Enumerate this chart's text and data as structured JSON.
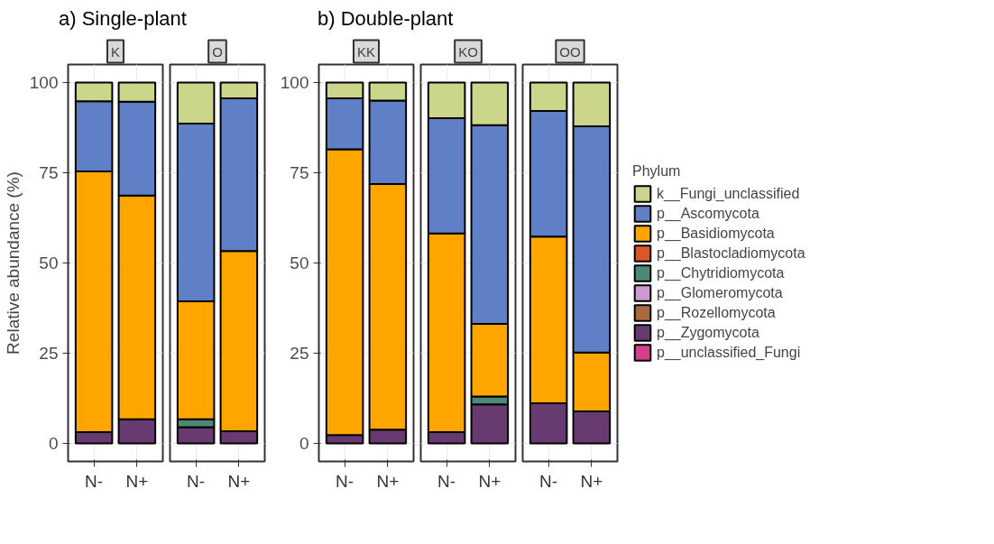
{
  "chart_data": [
    {
      "type": "bar",
      "title": "a) Single-plant",
      "subtitle": "K",
      "ylabel": "Relative abundance (%)",
      "categories": [
        "N-",
        "N+"
      ],
      "stacked": true,
      "ylim": [
        -5,
        105
      ],
      "yticks": [
        0,
        25,
        50,
        75,
        100
      ],
      "grid": true,
      "series": [
        {
          "color": "#d63f8a",
          "values": [
            0,
            0
          ]
        },
        {
          "color": "#683a72",
          "values": [
            3.1,
            6.7
          ]
        },
        {
          "color": "#a86b3c",
          "values": [
            0,
            0
          ]
        },
        {
          "color": "#cf98cf",
          "values": [
            0,
            0
          ]
        },
        {
          "color": "#4c8a77",
          "values": [
            0,
            0
          ]
        },
        {
          "color": "#dc5627",
          "values": [
            0,
            0
          ]
        },
        {
          "color": "#ffa500",
          "values": [
            72.3,
            62.0
          ]
        },
        {
          "color": "#5f80c7",
          "values": [
            19.4,
            26.0
          ]
        },
        {
          "color": "#ccd68a",
          "values": [
            5.2,
            5.3
          ]
        }
      ]
    },
    {
      "type": "bar",
      "subtitle": "O",
      "categories": [
        "N-",
        "N+"
      ],
      "stacked": true,
      "ylim": [
        -5,
        105
      ],
      "yticks": [
        0,
        25,
        50,
        75,
        100
      ],
      "grid": true,
      "tick_labels": "x",
      "series": [
        {
          "color": "#d63f8a",
          "values": [
            0,
            0
          ]
        },
        {
          "color": "#683a72",
          "values": [
            4.5,
            3.4
          ]
        },
        {
          "color": "#a86b3c",
          "values": [
            0,
            0
          ]
        },
        {
          "color": "#cf98cf",
          "values": [
            0,
            0
          ]
        },
        {
          "color": "#4c8a77",
          "values": [
            2.2,
            0
          ]
        },
        {
          "color": "#dc5627",
          "values": [
            0,
            0
          ]
        },
        {
          "color": "#ffa500",
          "values": [
            32.7,
            49.9
          ]
        },
        {
          "color": "#5f80c7",
          "values": [
            49.2,
            42.3
          ]
        },
        {
          "color": "#ccd68a",
          "values": [
            11.4,
            4.4
          ]
        }
      ]
    },
    {
      "type": "bar",
      "title": "b) Double-plant",
      "subtitle": "KK",
      "categories": [
        "N-",
        "N+"
      ],
      "stacked": true,
      "ylim": [
        -5,
        105
      ],
      "yticks": [
        0,
        25,
        50,
        75,
        100
      ],
      "grid": true,
      "series": [
        {
          "color": "#d63f8a",
          "values": [
            0,
            0
          ]
        },
        {
          "color": "#683a72",
          "values": [
            2.3,
            3.8
          ]
        },
        {
          "color": "#a86b3c",
          "values": [
            0,
            0
          ]
        },
        {
          "color": "#cf98cf",
          "values": [
            0,
            0
          ]
        },
        {
          "color": "#4c8a77",
          "values": [
            0,
            0
          ]
        },
        {
          "color": "#dc5627",
          "values": [
            0,
            0
          ]
        },
        {
          "color": "#ffa500",
          "values": [
            79.2,
            68.1
          ]
        },
        {
          "color": "#5f80c7",
          "values": [
            14.1,
            23.1
          ]
        },
        {
          "color": "#ccd68a",
          "values": [
            4.4,
            5.0
          ]
        }
      ]
    },
    {
      "type": "bar",
      "subtitle": "KO",
      "categories": [
        "N-",
        "N+"
      ],
      "stacked": true,
      "ylim": [
        -5,
        105
      ],
      "yticks": [
        0,
        25,
        50,
        75,
        100
      ],
      "grid": true,
      "tick_labels": "x",
      "series": [
        {
          "color": "#d63f8a",
          "values": [
            0,
            0
          ]
        },
        {
          "color": "#683a72",
          "values": [
            3.1,
            10.8
          ]
        },
        {
          "color": "#a86b3c",
          "values": [
            0,
            0
          ]
        },
        {
          "color": "#cf98cf",
          "values": [
            0,
            0
          ]
        },
        {
          "color": "#4c8a77",
          "values": [
            0,
            2.2
          ]
        },
        {
          "color": "#dc5627",
          "values": [
            0,
            0
          ]
        },
        {
          "color": "#ffa500",
          "values": [
            55.1,
            20.1
          ]
        },
        {
          "color": "#5f80c7",
          "values": [
            31.9,
            55.1
          ]
        },
        {
          "color": "#ccd68a",
          "values": [
            9.9,
            11.8
          ]
        }
      ]
    },
    {
      "type": "bar",
      "subtitle": "OO",
      "categories": [
        "N-",
        "N+"
      ],
      "stacked": true,
      "ylim": [
        -5,
        105
      ],
      "yticks": [
        0,
        25,
        50,
        75,
        100
      ],
      "grid": true,
      "legend": "right",
      "legend_title": "Phylum",
      "tick_labels": "x",
      "series": [
        {
          "name": "p__unclassified_Fungi",
          "color": "#d63f8a",
          "values": [
            0,
            0
          ]
        },
        {
          "name": "p__Zygomycota",
          "color": "#683a72",
          "values": [
            11.1,
            8.9
          ]
        },
        {
          "name": "p__Rozellomycota",
          "color": "#a86b3c",
          "values": [
            0,
            0
          ]
        },
        {
          "name": "p__Glomeromycota",
          "color": "#cf98cf",
          "values": [
            0,
            0
          ]
        },
        {
          "name": "p__Chytridiomycota",
          "color": "#4c8a77",
          "values": [
            0,
            0
          ]
        },
        {
          "name": "p__Blastocladiomycota",
          "color": "#dc5627",
          "values": [
            0,
            0
          ]
        },
        {
          "name": "p__Basidiomycota",
          "color": "#ffa500",
          "values": [
            46.2,
            16.3
          ]
        },
        {
          "name": "p__Ascomycota",
          "color": "#5f80c7",
          "values": [
            34.8,
            62.7
          ]
        },
        {
          "name": "k__Fungi_unclassified",
          "color": "#ccd68a",
          "values": [
            7.9,
            12.1
          ]
        }
      ]
    }
  ]
}
